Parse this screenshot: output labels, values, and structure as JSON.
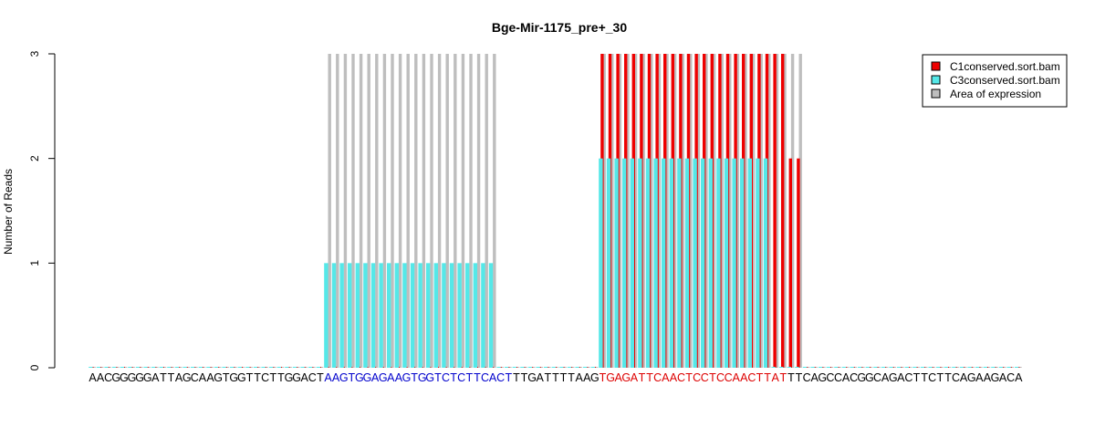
{
  "chart_data": {
    "type": "bar",
    "title": "Bge-Mir-1175_pre+_30",
    "ylabel": "Number of Reads",
    "xlabel": "",
    "ylim": [
      0,
      3
    ],
    "yticks": [
      "0",
      "1",
      "2",
      "3"
    ],
    "grid": false,
    "legend_position": "top-right",
    "sequence": "AACGGGGGATTAGCAAGTGGTTCTTGGACTAAGTGGAGAAGTGGTCTCTTCACTTTGATTTTAAGTGAGATTCAACTCCTCCAACTTATTTCAGCCACGGCAGACTTCTTCAGAAGACA",
    "highlights": [
      {
        "start": 30,
        "end": 54,
        "color": "#0000cc"
      },
      {
        "start": 65,
        "end": 89,
        "color": "#dd0000"
      }
    ],
    "series": [
      {
        "name": "C1conserved.sort.bam",
        "color": "#ee0000",
        "ranges": [
          {
            "start": 65,
            "end": 89,
            "value": 3
          },
          {
            "start": 89,
            "end": 91,
            "value": 2
          }
        ]
      },
      {
        "name": "C3conserved.sort.bam",
        "color": "#55e8e8",
        "ranges": [
          {
            "start": 30,
            "end": 52,
            "value": 1
          },
          {
            "start": 65,
            "end": 87,
            "value": 2
          }
        ]
      },
      {
        "name": "Area of expression",
        "color": "#bebebe",
        "ranges": [
          {
            "start": 30,
            "end": 52,
            "value": 3
          },
          {
            "start": 65,
            "end": 91,
            "value": 3
          }
        ]
      }
    ]
  }
}
